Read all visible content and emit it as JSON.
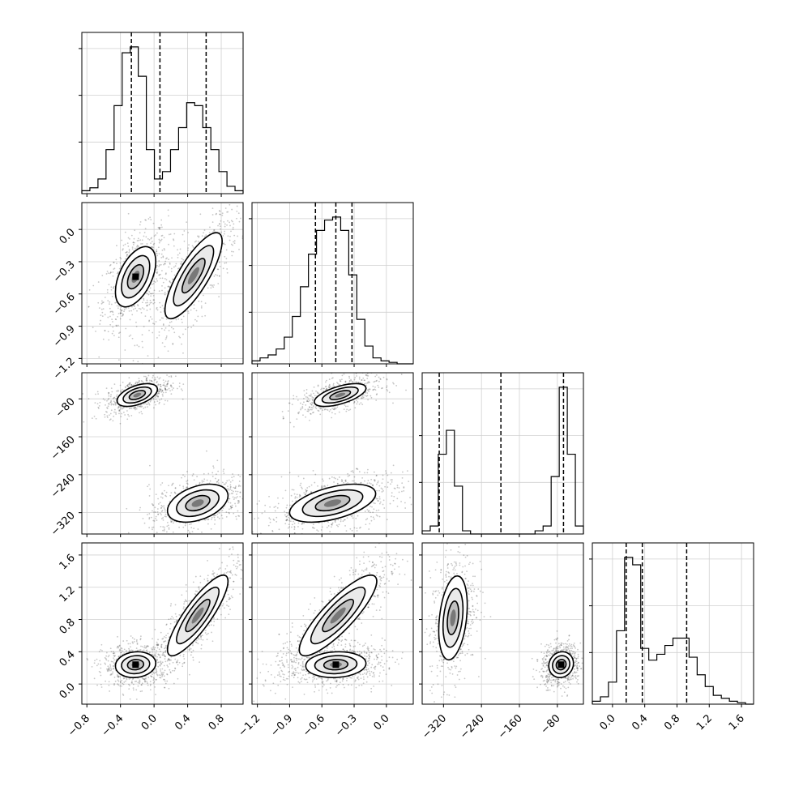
{
  "chart_data": {
    "type": "corner",
    "title": "",
    "parameters": [
      {
        "label": "",
        "range": [
          -0.86,
          1.06
        ],
        "ticks": [
          "−0.8",
          "−0.4",
          "0.0",
          "0.4",
          "0.8"
        ],
        "tick_values": [
          -0.8,
          -0.4,
          0.0,
          0.4,
          0.8
        ]
      },
      {
        "label": "",
        "range": [
          -1.25,
          0.25
        ],
        "ticks": [
          "−1.2",
          "−0.9",
          "−0.6",
          "−0.3",
          "0.0"
        ],
        "tick_values": [
          -1.2,
          -0.9,
          -0.6,
          -0.3,
          0.0
        ]
      },
      {
        "label": "",
        "range": [
          -365,
          -25
        ],
        "ticks": [
          "−320",
          "−240",
          "−160",
          "−80"
        ],
        "tick_values": [
          -320,
          -240,
          -160,
          -80
        ]
      },
      {
        "label": "",
        "range": [
          -0.25,
          1.75
        ],
        "ticks": [
          "0.0",
          "0.4",
          "0.8",
          "1.2",
          "1.6"
        ],
        "tick_values": [
          0.0,
          0.4,
          0.8,
          1.2,
          1.6
        ]
      }
    ],
    "histograms": [
      {
        "parameter_index": 0,
        "bin_edges": [
          -0.86,
          -0.764,
          -0.668,
          -0.572,
          -0.476,
          -0.38,
          -0.284,
          -0.188,
          -0.092,
          0.004,
          0.1,
          0.196,
          0.292,
          0.388,
          0.484,
          0.58,
          0.676,
          0.772,
          0.868,
          0.964,
          1.06
        ],
        "counts": [
          0.02,
          0.04,
          0.1,
          0.3,
          0.6,
          0.96,
          1.0,
          0.8,
          0.3,
          0.1,
          0.15,
          0.3,
          0.45,
          0.62,
          0.6,
          0.45,
          0.3,
          0.15,
          0.05,
          0.02
        ],
        "quantile_lines": [
          -0.27,
          0.07,
          0.62
        ]
      },
      {
        "parameter_index": 1,
        "bin_edges": [
          -1.25,
          -1.175,
          -1.1,
          -1.025,
          -0.95,
          -0.875,
          -0.8,
          -0.725,
          -0.65,
          -0.575,
          -0.5,
          -0.425,
          -0.35,
          -0.275,
          -0.2,
          -0.125,
          -0.05,
          0.025,
          0.1,
          0.175,
          0.25
        ],
        "counts": [
          0.02,
          0.04,
          0.06,
          0.1,
          0.18,
          0.32,
          0.52,
          0.74,
          0.9,
          0.97,
          0.99,
          0.9,
          0.6,
          0.3,
          0.12,
          0.04,
          0.02,
          0.01,
          0.0,
          0.0
        ],
        "quantile_lines": [
          -0.66,
          -0.47,
          -0.32
        ]
      },
      {
        "parameter_index": 2,
        "bin_edges": [
          -365,
          -348,
          -331,
          -314,
          -297,
          -280,
          -263,
          -246,
          -229,
          -212,
          -195,
          -178,
          -161,
          -144,
          -127,
          -110,
          -93,
          -76,
          -59,
          -42,
          -25
        ],
        "counts": [
          0.02,
          0.05,
          0.5,
          0.65,
          0.3,
          0.02,
          0.0,
          0.0,
          0.0,
          0.0,
          0.0,
          0.0,
          0.0,
          0.0,
          0.02,
          0.05,
          0.36,
          0.92,
          0.5,
          0.05
        ],
        "quantile_lines": [
          -329,
          -199,
          -67
        ]
      },
      {
        "parameter_index": 3,
        "bin_edges": [
          -0.25,
          -0.15,
          -0.05,
          0.05,
          0.15,
          0.25,
          0.35,
          0.45,
          0.55,
          0.65,
          0.75,
          0.85,
          0.95,
          1.05,
          1.15,
          1.25,
          1.35,
          1.45,
          1.55,
          1.65,
          1.75
        ],
        "counts": [
          0.02,
          0.05,
          0.15,
          0.5,
          1.0,
          0.95,
          0.38,
          0.3,
          0.34,
          0.4,
          0.45,
          0.45,
          0.32,
          0.2,
          0.12,
          0.06,
          0.04,
          0.02,
          0.01,
          0.0
        ],
        "quantile_lines": [
          0.17,
          0.37,
          0.92
        ]
      }
    ],
    "joint_panels": [
      {
        "x_param": 0,
        "y_param": 1,
        "modes": [
          {
            "cx": -0.22,
            "cy": -0.44,
            "sx": 0.12,
            "sy": 0.14,
            "rho": 0.5,
            "weight": 0.55
          },
          {
            "cx": 0.47,
            "cy": -0.43,
            "sx": 0.17,
            "sy": 0.2,
            "rho": 0.8,
            "weight": 0.45
          }
        ]
      },
      {
        "x_param": 0,
        "y_param": 2,
        "modes": [
          {
            "cx": -0.2,
            "cy": -72,
            "sx": 0.12,
            "sy": 12,
            "rho": 0.5,
            "weight": 0.5
          },
          {
            "cx": 0.52,
            "cy": -300,
            "sx": 0.18,
            "sy": 20,
            "rho": 0.4,
            "weight": 0.5
          }
        ]
      },
      {
        "x_param": 1,
        "y_param": 2,
        "modes": [
          {
            "cx": -0.43,
            "cy": -72,
            "sx": 0.12,
            "sy": 12,
            "rho": 0.6,
            "weight": 0.5
          },
          {
            "cx": -0.5,
            "cy": -300,
            "sx": 0.2,
            "sy": 20,
            "rho": 0.5,
            "weight": 0.5
          }
        ]
      },
      {
        "x_param": 0,
        "y_param": 3,
        "modes": [
          {
            "cx": -0.22,
            "cy": 0.24,
            "sx": 0.12,
            "sy": 0.08,
            "rho": 0.1,
            "weight": 0.55
          },
          {
            "cx": 0.52,
            "cy": 0.85,
            "sx": 0.18,
            "sy": 0.25,
            "rho": 0.85,
            "weight": 0.45
          }
        ]
      },
      {
        "x_param": 1,
        "y_param": 3,
        "modes": [
          {
            "cx": -0.47,
            "cy": 0.24,
            "sx": 0.14,
            "sy": 0.08,
            "rho": 0.1,
            "weight": 0.55
          },
          {
            "cx": -0.45,
            "cy": 0.85,
            "sx": 0.18,
            "sy": 0.25,
            "rho": 0.85,
            "weight": 0.45
          }
        ]
      },
      {
        "x_param": 2,
        "y_param": 3,
        "modes": [
          {
            "cx": -300,
            "cy": 0.82,
            "sx": 15,
            "sy": 0.26,
            "rho": 0.3,
            "weight": 0.45
          },
          {
            "cx": -72,
            "cy": 0.24,
            "sx": 13,
            "sy": 0.08,
            "rho": 0.1,
            "weight": 0.55
          }
        ]
      }
    ],
    "grid": true,
    "legend": "none"
  }
}
